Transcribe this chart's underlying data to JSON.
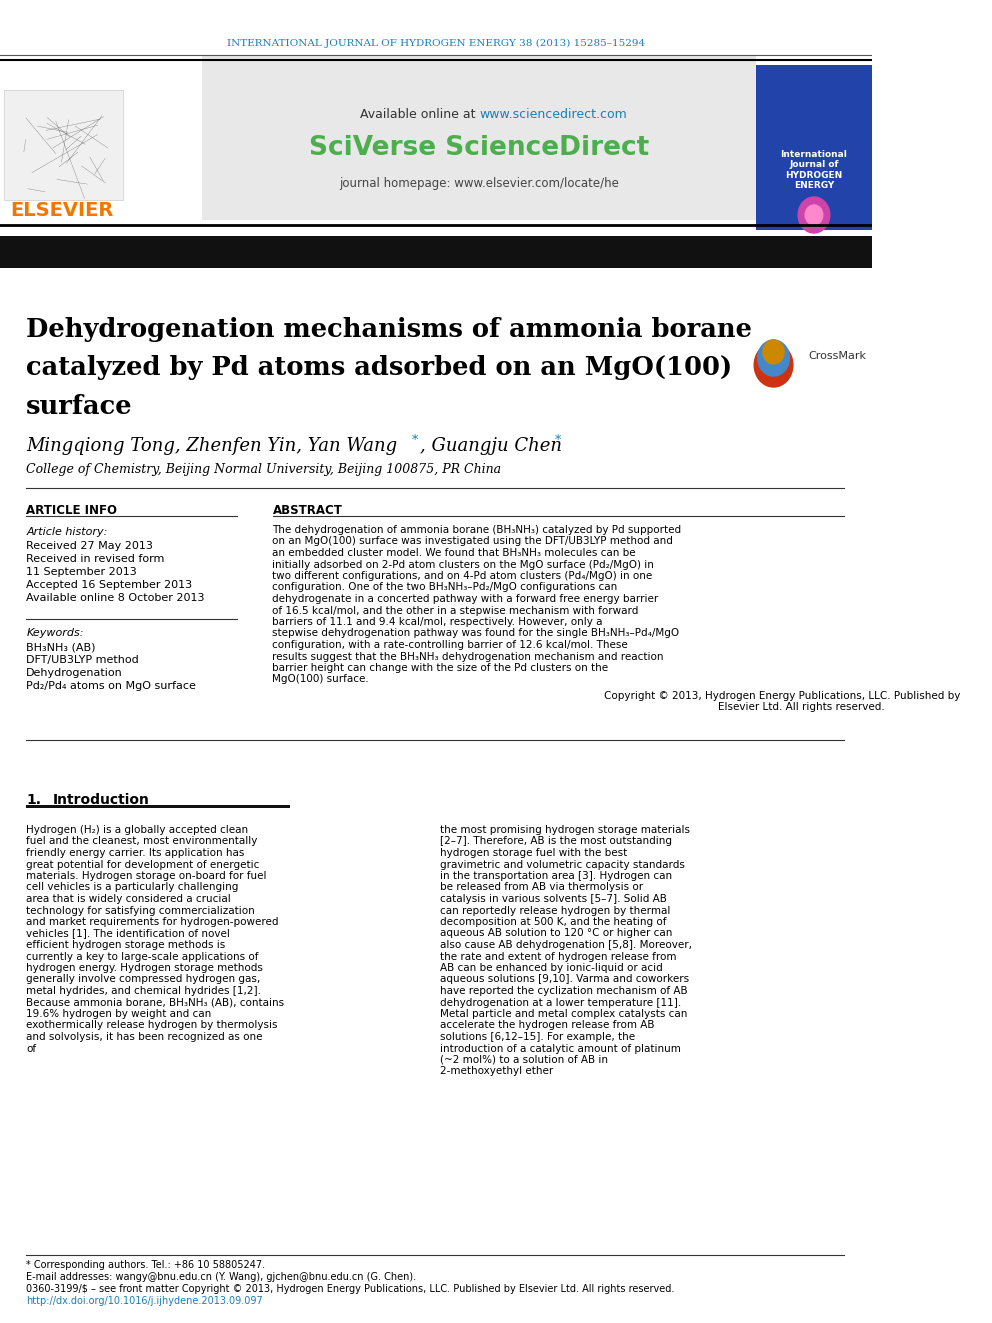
{
  "journal_header": "INTERNATIONAL JOURNAL OF HYDROGEN ENERGY 38 (2013) 15285–15294",
  "journal_header_color": "#1a7fb5",
  "available_online": "Available online at ",
  "sciencedirect_url": "www.sciencedirect.com",
  "sciverse_text": "SciVerse ScienceDirect",
  "sciverse_color": "#4cae4c",
  "journal_homepage": "journal homepage: www.elsevier.com/locate/he",
  "elsevier_color": "#f07800",
  "header_bg": "#e0e0e0",
  "title_bar_color": "#1a1a1a",
  "paper_title": "Dehydrogenation mechanisms of ammonia borane\ncatalyzed by Pd atoms adsorbed on an MgO(100)\nsurface",
  "authors": "Mingqiong Tong, Zhenfen Yin, Yan Wang",
  "authors_star": "*, Guangju Chen",
  "authors_star2": "*",
  "affiliation": "College of Chemistry, Beijing Normal University, Beijing 100875, PR China",
  "article_info_header": "ARTICLE INFO",
  "abstract_header": "ABSTRACT",
  "article_history_label": "Article history:",
  "received1": "Received 27 May 2013",
  "received2": "Received in revised form",
  "received2b": "11 September 2013",
  "accepted": "Accepted 16 September 2013",
  "available_online2": "Available online 8 October 2013",
  "keywords_label": "Keywords:",
  "keyword1": "BH₃NH₃ (AB)",
  "keyword2": "DFT/UB3LYP method",
  "keyword3": "Dehydrogenation",
  "keyword4": "Pd₂/Pd₄ atoms on MgO surface",
  "abstract_text": "The dehydrogenation of ammonia borane (BH₃NH₃) catalyzed by Pd supported on an MgO(100) surface was investigated using the DFT/UB3LYP method and an embedded cluster model. We found that BH₃NH₃ molecules can be initially adsorbed on 2-Pd atom clusters on the MgO surface (Pd₂/MgO) in two different configurations, and on 4-Pd atom clusters (Pd₄/MgO) in one configuration. One of the two BH₃NH₃–Pd₂/MgO configurations can dehydrogenate in a concerted pathway with a forward free energy barrier of 16.5 kcal/mol, and the other in a stepwise mechanism with forward barriers of 11.1 and 9.4 kcal/mol, respectively. However, only a stepwise dehydrogenation pathway was found for the single BH₃NH₃–Pd₄/MgO configuration, with a rate-controlling barrier of 12.6 kcal/mol. These results suggest that the BH₃NH₃ dehydrogenation mechanism and reaction barrier height can change with the size of the Pd clusters on the MgO(100) surface.",
  "copyright": "Copyright © 2013, Hydrogen Energy Publications, LLC. Published by Elsevier Ltd. All rights reserved.",
  "section1_num": "1.",
  "section1_title": "Introduction",
  "intro_col1": "Hydrogen (H₂) is a globally accepted clean fuel and the cleanest, most environmentally friendly energy carrier. Its application has great potential for development of energetic materials. Hydrogen storage on-board for fuel cell vehicles is a particularly challenging area that is widely considered a crucial technology for satisfying commercialization and market requirements for hydrogen-powered vehicles [1]. The identification of novel efficient hydrogen storage methods is currently a key to large-scale applications of hydrogen energy. Hydrogen storage methods generally involve compressed hydrogen gas, metal hydrides, and chemical hydrides [1,2]. Because ammonia borane, BH₃NH₃ (AB), contains 19.6% hydrogen by weight and can exothermically release hydrogen by thermolysis and solvolysis, it has been recognized as one of",
  "intro_col2": "the most promising hydrogen storage materials [2–7]. Therefore, AB is the most outstanding hydrogen storage fuel with the best gravimetric and volumetric capacity standards in the transportation area [3]. Hydrogen can be released from AB via thermolysis or catalysis in various solvents [5–7]. Solid AB can reportedly release hydrogen by thermal decomposition at 500 K, and the heating of aqueous AB solution to 120 °C or higher can also cause AB dehydrogenation [5,8]. Moreover, the rate and extent of hydrogen release from AB can be enhanced by ionic-liquid or acid aqueous solutions [9,10]. Varma and coworkers have reported the cyclization mechanism of AB dehydrogenation at a lower temperature [11].\n    Metal particle and metal complex catalysts can accelerate the hydrogen release from AB solutions [6,12–15]. For example, the introduction of a catalytic amount of platinum (~2 mol%) to a solution of AB in 2-methoxyethyl ether",
  "footnote_star": "* Corresponding authors. Tel.: +86 10 58805247.",
  "footnote_email": "E-mail addresses: wangy@bnu.edu.cn (Y. Wang), gjchen@bnu.edu.cn (G. Chen).",
  "footnote_issn": "0360-3199/$ – see front matter Copyright © 2013, Hydrogen Energy Publications, LLC. Published by Elsevier Ltd. All rights reserved.",
  "footnote_doi": "http://dx.doi.org/10.1016/j.ijhydene.2013.09.097",
  "footnote_doi_color": "#1a7fb5",
  "bg_color": "#ffffff",
  "text_color": "#000000",
  "line_color": "#333333",
  "ref_color": "#1a7fb5"
}
